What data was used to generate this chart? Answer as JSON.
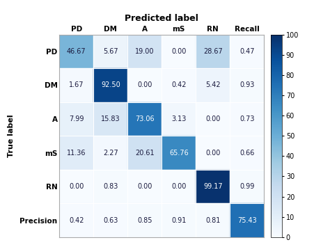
{
  "title": "Predicted label",
  "ylabel": "True label",
  "col_labels": [
    "PD",
    "DM",
    "A",
    "mS",
    "RN",
    "Recall"
  ],
  "row_labels": [
    "PD",
    "DM",
    "A",
    "mS",
    "RN",
    "Precision"
  ],
  "matrix": [
    [
      46.67,
      5.67,
      19.0,
      0.0,
      28.67,
      0.47
    ],
    [
      1.67,
      92.5,
      0.0,
      0.42,
      5.42,
      0.93
    ],
    [
      7.99,
      15.83,
      73.06,
      3.13,
      0.0,
      0.73
    ],
    [
      11.36,
      2.27,
      20.61,
      65.76,
      0.0,
      0.66
    ],
    [
      0.0,
      0.83,
      0.0,
      0.0,
      99.17,
      0.99
    ],
    [
      0.42,
      0.63,
      0.85,
      0.91,
      0.81,
      75.43
    ]
  ],
  "vmin": 0,
  "vmax": 100,
  "cmap": "Blues",
  "colorbar_ticks": [
    0,
    10,
    20,
    30,
    40,
    50,
    60,
    70,
    80,
    90,
    100
  ],
  "title_fontsize": 9,
  "label_fontsize": 8,
  "tick_fontsize": 7.5,
  "cell_fontsize": 7,
  "figsize": [
    4.74,
    3.55
  ],
  "dpi": 100,
  "white_text_threshold": 60
}
